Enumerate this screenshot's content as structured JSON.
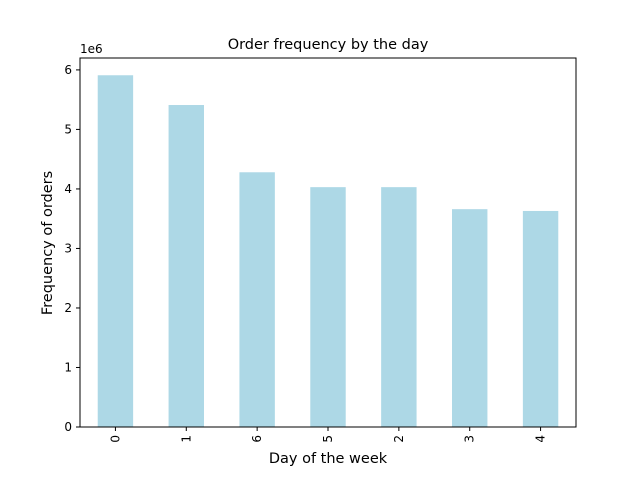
{
  "chart_data": {
    "type": "bar",
    "title": "Order frequency by the day",
    "xlabel": "Day of the week",
    "ylabel": "Frequency of orders",
    "y_multiplier_label": "1e6",
    "categories": [
      "0",
      "1",
      "6",
      "5",
      "2",
      "3",
      "4"
    ],
    "values": [
      5910000,
      5410000,
      4280000,
      4030000,
      4030000,
      3660000,
      3630000
    ],
    "ylim": [
      0,
      6200000
    ],
    "yticks": [
      0,
      1000000,
      2000000,
      3000000,
      4000000,
      5000000,
      6000000
    ],
    "ytick_labels": [
      "0",
      "1",
      "2",
      "3",
      "4",
      "5",
      "6"
    ],
    "bar_color": "#add8e6",
    "grid": false,
    "legend": "none"
  }
}
